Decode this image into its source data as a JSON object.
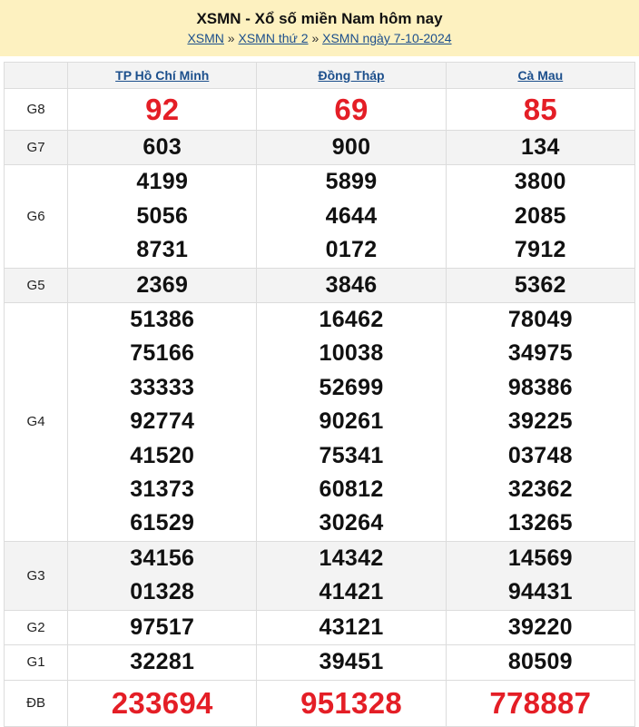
{
  "header": {
    "title": "XSMN - Xổ số miền Nam hôm nay",
    "breadcrumb": [
      "XSMN",
      "XSMN thứ 2",
      "XSMN ngày 7-10-2024"
    ],
    "separator": "»"
  },
  "colors": {
    "header_bg": "#fdf1c0",
    "link": "#1c4f8c",
    "highlight": "#e41e26"
  },
  "provinces": [
    "TP Hồ Chí Minh",
    "Đồng Tháp",
    "Cà Mau"
  ],
  "prizes": [
    {
      "label": "G8",
      "results": [
        [
          "92"
        ],
        [
          "69"
        ],
        [
          "85"
        ]
      ]
    },
    {
      "label": "G7",
      "results": [
        [
          "603"
        ],
        [
          "900"
        ],
        [
          "134"
        ]
      ]
    },
    {
      "label": "G6",
      "results": [
        [
          "4199",
          "5056",
          "8731"
        ],
        [
          "5899",
          "4644",
          "0172"
        ],
        [
          "3800",
          "2085",
          "7912"
        ]
      ]
    },
    {
      "label": "G5",
      "results": [
        [
          "2369"
        ],
        [
          "3846"
        ],
        [
          "5362"
        ]
      ]
    },
    {
      "label": "G4",
      "results": [
        [
          "51386",
          "75166",
          "33333",
          "92774",
          "41520",
          "31373",
          "61529"
        ],
        [
          "16462",
          "10038",
          "52699",
          "90261",
          "75341",
          "60812",
          "30264"
        ],
        [
          "78049",
          "34975",
          "98386",
          "39225",
          "03748",
          "32362",
          "13265"
        ]
      ]
    },
    {
      "label": "G3",
      "results": [
        [
          "34156",
          "01328"
        ],
        [
          "14342",
          "41421"
        ],
        [
          "14569",
          "94431"
        ]
      ]
    },
    {
      "label": "G2",
      "results": [
        [
          "97517"
        ],
        [
          "43121"
        ],
        [
          "39220"
        ]
      ]
    },
    {
      "label": "G1",
      "results": [
        [
          "32281"
        ],
        [
          "39451"
        ],
        [
          "80509"
        ]
      ]
    },
    {
      "label": "ĐB",
      "results": [
        [
          "233694"
        ],
        [
          "951328"
        ],
        [
          "778887"
        ]
      ]
    }
  ]
}
